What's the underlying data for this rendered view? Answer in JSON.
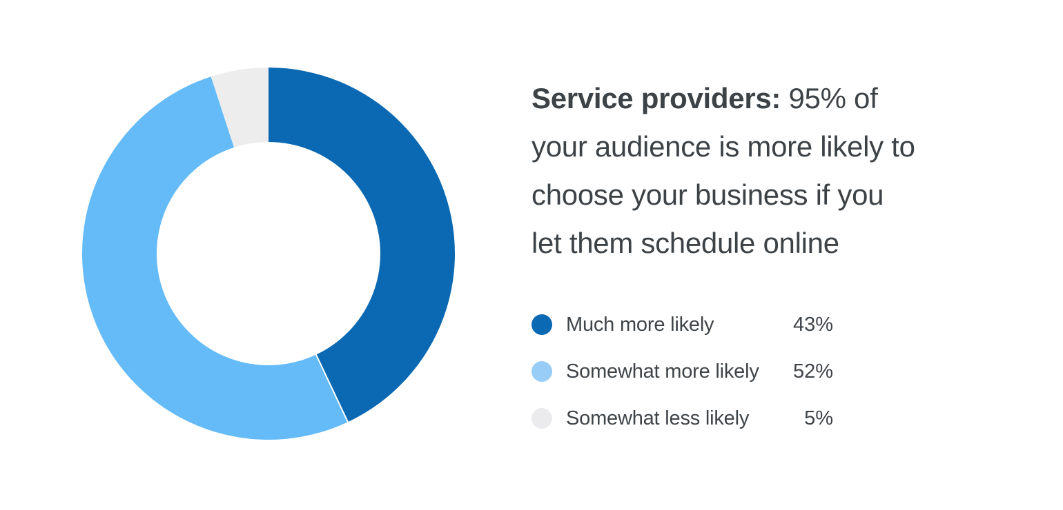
{
  "heading": {
    "line1_bold": "Service providers:",
    "line1_rest": " 95% of",
    "line2": "your audience is more likely to",
    "line3": "choose your business if you",
    "line4": "let them schedule online"
  },
  "legend": {
    "items": [
      {
        "label": "Much more likely",
        "value": "43%",
        "color": "#8fccf6"
      },
      {
        "label": "Somewhat more likely",
        "value": "52%",
        "color": "#97cdf7"
      },
      {
        "label": "Somewhat less likely",
        "value": "5%",
        "color": "#ebebed"
      }
    ]
  },
  "colors": {
    "dark_blue": "#0a69b2",
    "light_blue": "#64bbf7",
    "neutral_gray": "#ededee",
    "text": "#3d4247"
  },
  "chart_data": {
    "type": "pie",
    "variant": "donut",
    "title": "Service providers: 95% of your audience is more likely to choose your business if you let them schedule online",
    "categories": [
      "Much more likely",
      "Somewhat more likely",
      "Somewhat less likely"
    ],
    "values": [
      43,
      52,
      5
    ],
    "unit": "%",
    "colors": [
      "#0a69b2",
      "#64bbf7",
      "#ededee"
    ],
    "legend_colors": [
      "#0a69b2",
      "#97cdf7",
      "#ebebed"
    ],
    "start_angle_deg": 0,
    "direction": "clockwise",
    "hole_ratio": 0.6,
    "legend_position": "right",
    "legend_values_shown": true
  }
}
